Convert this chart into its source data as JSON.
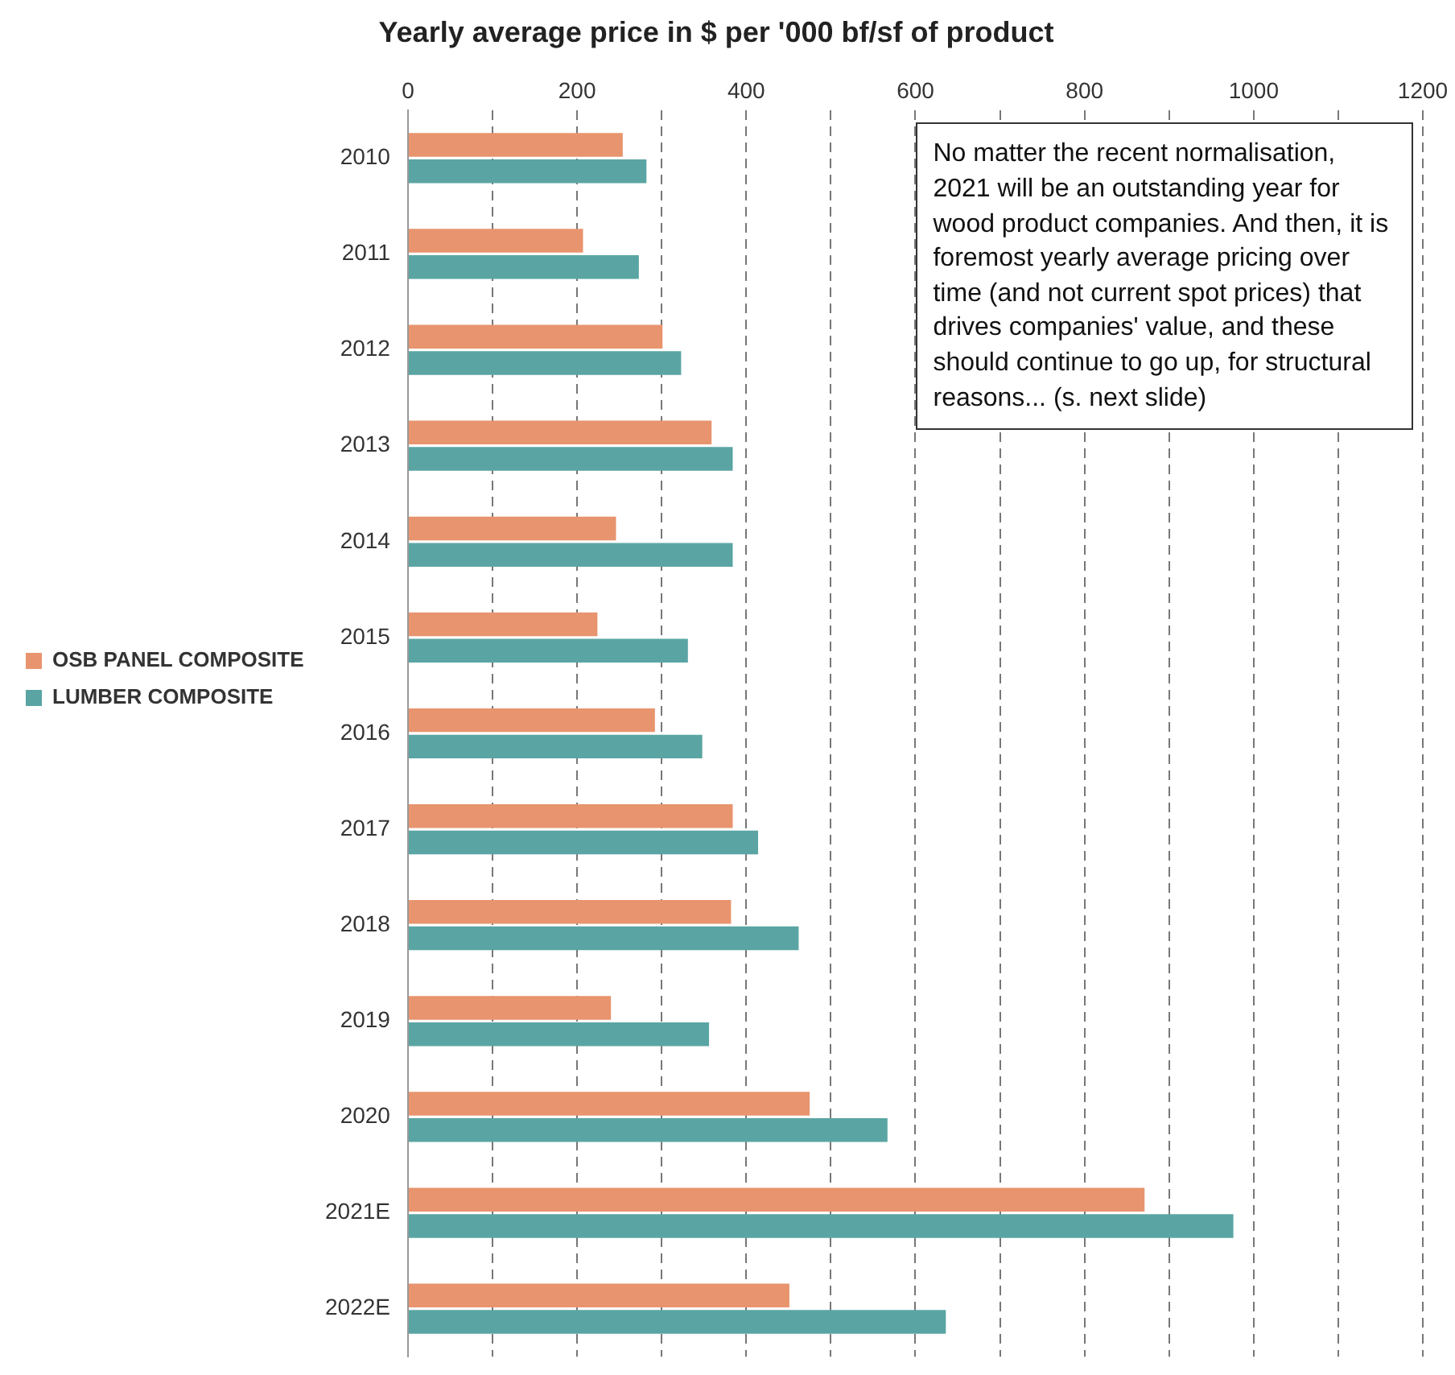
{
  "chart_data": {
    "type": "bar",
    "orientation": "horizontal",
    "title": "Yearly average price in $ per '000 bf/sf of product",
    "categories": [
      "2010",
      "2011",
      "2012",
      "2013",
      "2014",
      "2015",
      "2016",
      "2017",
      "2018",
      "2019",
      "2020",
      "2021E",
      "2022E"
    ],
    "series": [
      {
        "name": "OSB PANEL COMPOSITE",
        "color": "#e8946e",
        "values": [
          254,
          207,
          301,
          359,
          246,
          224,
          292,
          384,
          382,
          240,
          475,
          871,
          451
        ]
      },
      {
        "name": "LUMBER COMPOSITE",
        "color": "#5aa5a3",
        "values": [
          282,
          273,
          323,
          384,
          384,
          331,
          348,
          414,
          462,
          356,
          567,
          976,
          636
        ]
      }
    ],
    "xlim": [
      0,
      1200
    ],
    "xticks": [
      0,
      {
        "value": 100,
        "label": null
      },
      200,
      {
        "value": 300,
        "label": null
      },
      400,
      {
        "value": 500,
        "label": null
      },
      600,
      {
        "value": 700,
        "label": null
      },
      800,
      {
        "value": 900,
        "label": null
      },
      1000,
      {
        "value": 1100,
        "label": null
      },
      1200
    ],
    "grid": "x",
    "legend": "left",
    "annotations": [
      "No matter the recent normalisation, 2021 will be an outstanding year for wood product companies. And then, it is foremost yearly average pricing over time (and not current spot prices) that drives companies' value, and these should continue to go up, for structural reasons... (s. next slide)"
    ]
  }
}
